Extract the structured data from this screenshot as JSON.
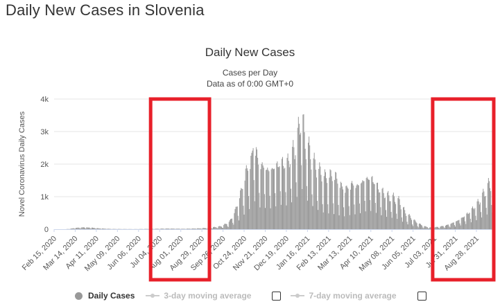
{
  "page": {
    "title": "Daily New Cases in Slovenia"
  },
  "colors": {
    "bar": "#999999",
    "highlight": "#e8202a",
    "grid": "#e6e6e6",
    "axis": "#ccd6eb"
  },
  "legend": {
    "daily": "Daily Cases",
    "avg3": "3-day moving average",
    "avg7": "7-day moving average"
  },
  "chart_data": {
    "type": "bar",
    "title": "Daily New Cases",
    "subtitle_1": "Cases per Day",
    "subtitle_2": "Data as of 0:00 GMT+0",
    "ylabel": "Novel Coronavirus Daily Cases",
    "xlabel": "",
    "ylim": [
      0,
      4000
    ],
    "y_ticks": [
      {
        "value": 0,
        "label": "0"
      },
      {
        "value": 1000,
        "label": "1k"
      },
      {
        "value": 2000,
        "label": "2k"
      },
      {
        "value": 3000,
        "label": "3k"
      },
      {
        "value": 4000,
        "label": "4k"
      }
    ],
    "x_start": "2020-02-15",
    "x_end": "2021-09-20",
    "x_tick_labels": [
      "Feb 15, 2020",
      "Mar 14, 2020",
      "Apr 11, 2020",
      "May 09, 2020",
      "Jun 06, 2020",
      "Jul 04, 2020",
      "Aug 01, 2020",
      "Aug 29, 2020",
      "Sep 26, 2020",
      "Oct 24, 2020",
      "Nov 21, 2020",
      "Dec 19, 2020",
      "Jan 16, 2021",
      "Feb 13, 2021",
      "Mar 13, 2021",
      "Apr 10, 2021",
      "May 08, 2021",
      "Jun 05, 2021",
      "Jul 03, 2021",
      "Jul 31, 2021",
      "Aug 28, 2021"
    ],
    "series": [
      {
        "name": "Daily Cases",
        "points": [
          [
            "2020-03-05",
            5
          ],
          [
            "2020-03-15",
            40
          ],
          [
            "2020-03-25",
            55
          ],
          [
            "2020-04-05",
            45
          ],
          [
            "2020-04-15",
            25
          ],
          [
            "2020-05-01",
            8
          ],
          [
            "2020-06-01",
            3
          ],
          [
            "2020-06-25",
            10
          ],
          [
            "2020-07-15",
            20
          ],
          [
            "2020-08-05",
            12
          ],
          [
            "2020-08-25",
            25
          ],
          [
            "2020-09-10",
            45
          ],
          [
            "2020-09-25",
            90
          ],
          [
            "2020-10-05",
            220
          ],
          [
            "2020-10-12",
            500
          ],
          [
            "2020-10-20",
            1050
          ],
          [
            "2020-10-27",
            1650
          ],
          [
            "2020-11-03",
            2000
          ],
          [
            "2020-11-06",
            2600
          ],
          [
            "2020-11-12",
            1900
          ],
          [
            "2020-11-20",
            1800
          ],
          [
            "2020-11-27",
            1700
          ],
          [
            "2020-12-05",
            1850
          ],
          [
            "2020-12-12",
            1950
          ],
          [
            "2020-12-19",
            1900
          ],
          [
            "2020-12-26",
            2150
          ],
          [
            "2021-01-01",
            2500
          ],
          [
            "2021-01-05",
            2900
          ],
          [
            "2021-01-08",
            3500
          ],
          [
            "2021-01-12",
            2600
          ],
          [
            "2021-01-19",
            2200
          ],
          [
            "2021-01-26",
            1800
          ],
          [
            "2021-02-02",
            1600
          ],
          [
            "2021-02-09",
            1450
          ],
          [
            "2021-02-16",
            1500
          ],
          [
            "2021-02-23",
            1450
          ],
          [
            "2021-03-02",
            1200
          ],
          [
            "2021-03-09",
            1150
          ],
          [
            "2021-03-16",
            1300
          ],
          [
            "2021-03-23",
            1250
          ],
          [
            "2021-03-30",
            1400
          ],
          [
            "2021-04-06",
            1500
          ],
          [
            "2021-04-13",
            1450
          ],
          [
            "2021-04-20",
            1200
          ],
          [
            "2021-04-27",
            1050
          ],
          [
            "2021-05-04",
            950
          ],
          [
            "2021-05-11",
            900
          ],
          [
            "2021-05-18",
            800
          ],
          [
            "2021-05-25",
            500
          ],
          [
            "2021-06-01",
            350
          ],
          [
            "2021-06-08",
            220
          ],
          [
            "2021-06-15",
            130
          ],
          [
            "2021-06-22",
            70
          ],
          [
            "2021-06-29",
            45
          ],
          [
            "2021-07-06",
            60
          ],
          [
            "2021-07-13",
            85
          ],
          [
            "2021-07-20",
            120
          ],
          [
            "2021-07-27",
            180
          ],
          [
            "2021-08-03",
            250
          ],
          [
            "2021-08-10",
            350
          ],
          [
            "2021-08-17",
            470
          ],
          [
            "2021-08-24",
            620
          ],
          [
            "2021-08-31",
            800
          ],
          [
            "2021-09-07",
            1050
          ],
          [
            "2021-09-14",
            1300
          ],
          [
            "2021-09-20",
            1400
          ]
        ]
      }
    ],
    "annotations": [
      {
        "type": "highlight-box",
        "from": "2020-06-22",
        "to": "2020-09-08"
      },
      {
        "type": "highlight-box",
        "from": "2021-07-01",
        "to": "2021-09-20"
      }
    ]
  }
}
